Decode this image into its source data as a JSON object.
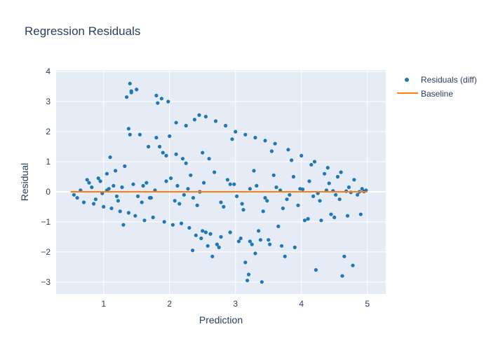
{
  "chart_data": {
    "type": "scatter",
    "title": "Regression Residuals",
    "xlabel": "Prediction",
    "ylabel": "Residual",
    "xlim": [
      0.28,
      5.28
    ],
    "ylim": [
      -3.4,
      4.05
    ],
    "xticks": [
      1,
      2,
      3,
      4,
      5
    ],
    "yticks": [
      -3,
      -2,
      -1,
      0,
      1,
      2,
      3,
      4
    ],
    "grid": true,
    "legend_position": "top-right",
    "series": [
      {
        "name": "Residuals (diff)",
        "mode": "markers",
        "color": "#1f77b4",
        "x": [
          0.65,
          0.7,
          0.78,
          0.85,
          0.92,
          1.0,
          1.05,
          1.12,
          1.18,
          1.25,
          1.32,
          1.38,
          1.4,
          1.42,
          1.48,
          1.55,
          1.62,
          1.68,
          1.75,
          1.8,
          1.82,
          1.88,
          1.92,
          1.98,
          2.05,
          2.1,
          2.18,
          2.25,
          2.3,
          2.38,
          2.45,
          2.5,
          2.55,
          2.62,
          2.7,
          2.78,
          2.85,
          2.92,
          3.0,
          3.08,
          3.15,
          3.22,
          3.3,
          3.38,
          3.45,
          3.52,
          3.6,
          3.7,
          3.8,
          3.9,
          4.0,
          4.1,
          4.2,
          4.3,
          4.4,
          4.5,
          4.6,
          4.7,
          4.8,
          4.9,
          4.98,
          1.35,
          1.38,
          1.5,
          1.8,
          1.85,
          1.9,
          1.95,
          1.4,
          1.42,
          2.2,
          2.25,
          2.5,
          2.55,
          2.65,
          2.72,
          2.4,
          2.48,
          2.58,
          3.05,
          3.15,
          3.25,
          2.75,
          2.62,
          3.18,
          3.2,
          3.4,
          3.75,
          2.35,
          3.3,
          3.5,
          4.22,
          4.62,
          4.78,
          4.65,
          1.1,
          1.3,
          2.0,
          2.1,
          2.6,
          2.95,
          3.35,
          3.55,
          3.65,
          3.85,
          4.05,
          4.15,
          4.35,
          4.45,
          4.55,
          0.6,
          0.75,
          0.88,
          0.95,
          1.15,
          1.22,
          1.28,
          1.45,
          1.58,
          1.65,
          1.72,
          2.02,
          2.15,
          2.32,
          2.42,
          2.68,
          2.82,
          2.88,
          3.12,
          3.28,
          3.42,
          3.58,
          3.72,
          3.88,
          3.95,
          4.12,
          4.28,
          4.42,
          4.58,
          4.72,
          4.85,
          4.92,
          1.05,
          1.2,
          1.6,
          1.7,
          1.95,
          2.08,
          2.28,
          2.36,
          2.52,
          2.78,
          2.98,
          3.1,
          3.32,
          3.48,
          3.62,
          3.78,
          3.98,
          4.18,
          4.38,
          4.52,
          4.68,
          4.88,
          0.55,
          0.82,
          0.98,
          1.08,
          1.52,
          1.78,
          2.12,
          2.22,
          2.46,
          2.92,
          3.02,
          3.22,
          3.45,
          3.68,
          3.82,
          4.02,
          4.25,
          4.48,
          4.75,
          4.95
        ],
        "y": [
          0.05,
          -0.35,
          0.3,
          -0.4,
          0.45,
          -0.5,
          0.6,
          -0.55,
          0.7,
          -0.65,
          0.85,
          -0.7,
          3.6,
          3.35,
          -0.8,
          1.9,
          -0.95,
          1.5,
          -0.85,
          3.2,
          2.95,
          3.1,
          -1.0,
          3.0,
          -1.1,
          2.3,
          -1.05,
          2.2,
          -1.2,
          2.4,
          2.55,
          -1.3,
          2.5,
          -1.4,
          2.35,
          -1.5,
          2.2,
          -1.35,
          2.0,
          -1.55,
          1.9,
          -1.65,
          1.8,
          -1.6,
          1.7,
          -1.75,
          1.6,
          -1.8,
          1.4,
          -1.85,
          1.2,
          -0.9,
          1.0,
          -0.95,
          0.8,
          -0.85,
          0.65,
          -0.8,
          0.4,
          -0.75,
          0.05,
          3.15,
          2.1,
          3.4,
          1.8,
          1.5,
          1.3,
          1.2,
          1.9,
          3.3,
          1.1,
          0.95,
          1.3,
          -1.35,
          -2.15,
          -1.75,
          -1.45,
          -1.55,
          -1.8,
          -1.65,
          -2.35,
          -1.75,
          -1.85,
          -1.4,
          -2.95,
          -2.75,
          -3.0,
          -2.15,
          -1.95,
          -2.05,
          -1.6,
          -2.6,
          -2.8,
          -2.45,
          -2.15,
          1.15,
          -1.1,
          1.85,
          1.25,
          1.1,
          1.75,
          -1.3,
          1.35,
          -1.15,
          1.05,
          -0.95,
          0.9,
          0.6,
          -0.75,
          0.5,
          -0.2,
          0.4,
          -0.25,
          0.35,
          0.2,
          -0.3,
          0.15,
          0.25,
          -0.35,
          0.3,
          -0.2,
          0.45,
          -0.4,
          0.55,
          -0.45,
          0.65,
          -0.5,
          0.4,
          -0.6,
          0.7,
          -0.65,
          0.55,
          -0.55,
          0.5,
          -0.45,
          0.35,
          -0.3,
          0.28,
          -0.25,
          0.15,
          -0.1,
          0.1,
          0.05,
          -0.15,
          0.2,
          -0.2,
          0.35,
          -0.3,
          0.1,
          -0.2,
          0.3,
          -0.35,
          0.25,
          -0.4,
          0.2,
          -0.3,
          0.15,
          -0.25,
          0.1,
          -0.15,
          0.05,
          -0.1,
          0.02,
          0.0,
          -0.1,
          0.15,
          -0.05,
          0.1,
          -0.15,
          0.05,
          0.2,
          -0.1,
          0.0,
          0.25,
          -0.15,
          0.1,
          -0.2,
          0.05,
          -0.1,
          0.08,
          -0.05,
          0.03,
          -0.02,
          0.01
        ]
      },
      {
        "name": "Baseline",
        "mode": "lines",
        "color": "#ff7f0e",
        "x": [
          0.5,
          5.0
        ],
        "y": [
          0.0,
          0.0
        ]
      }
    ]
  }
}
